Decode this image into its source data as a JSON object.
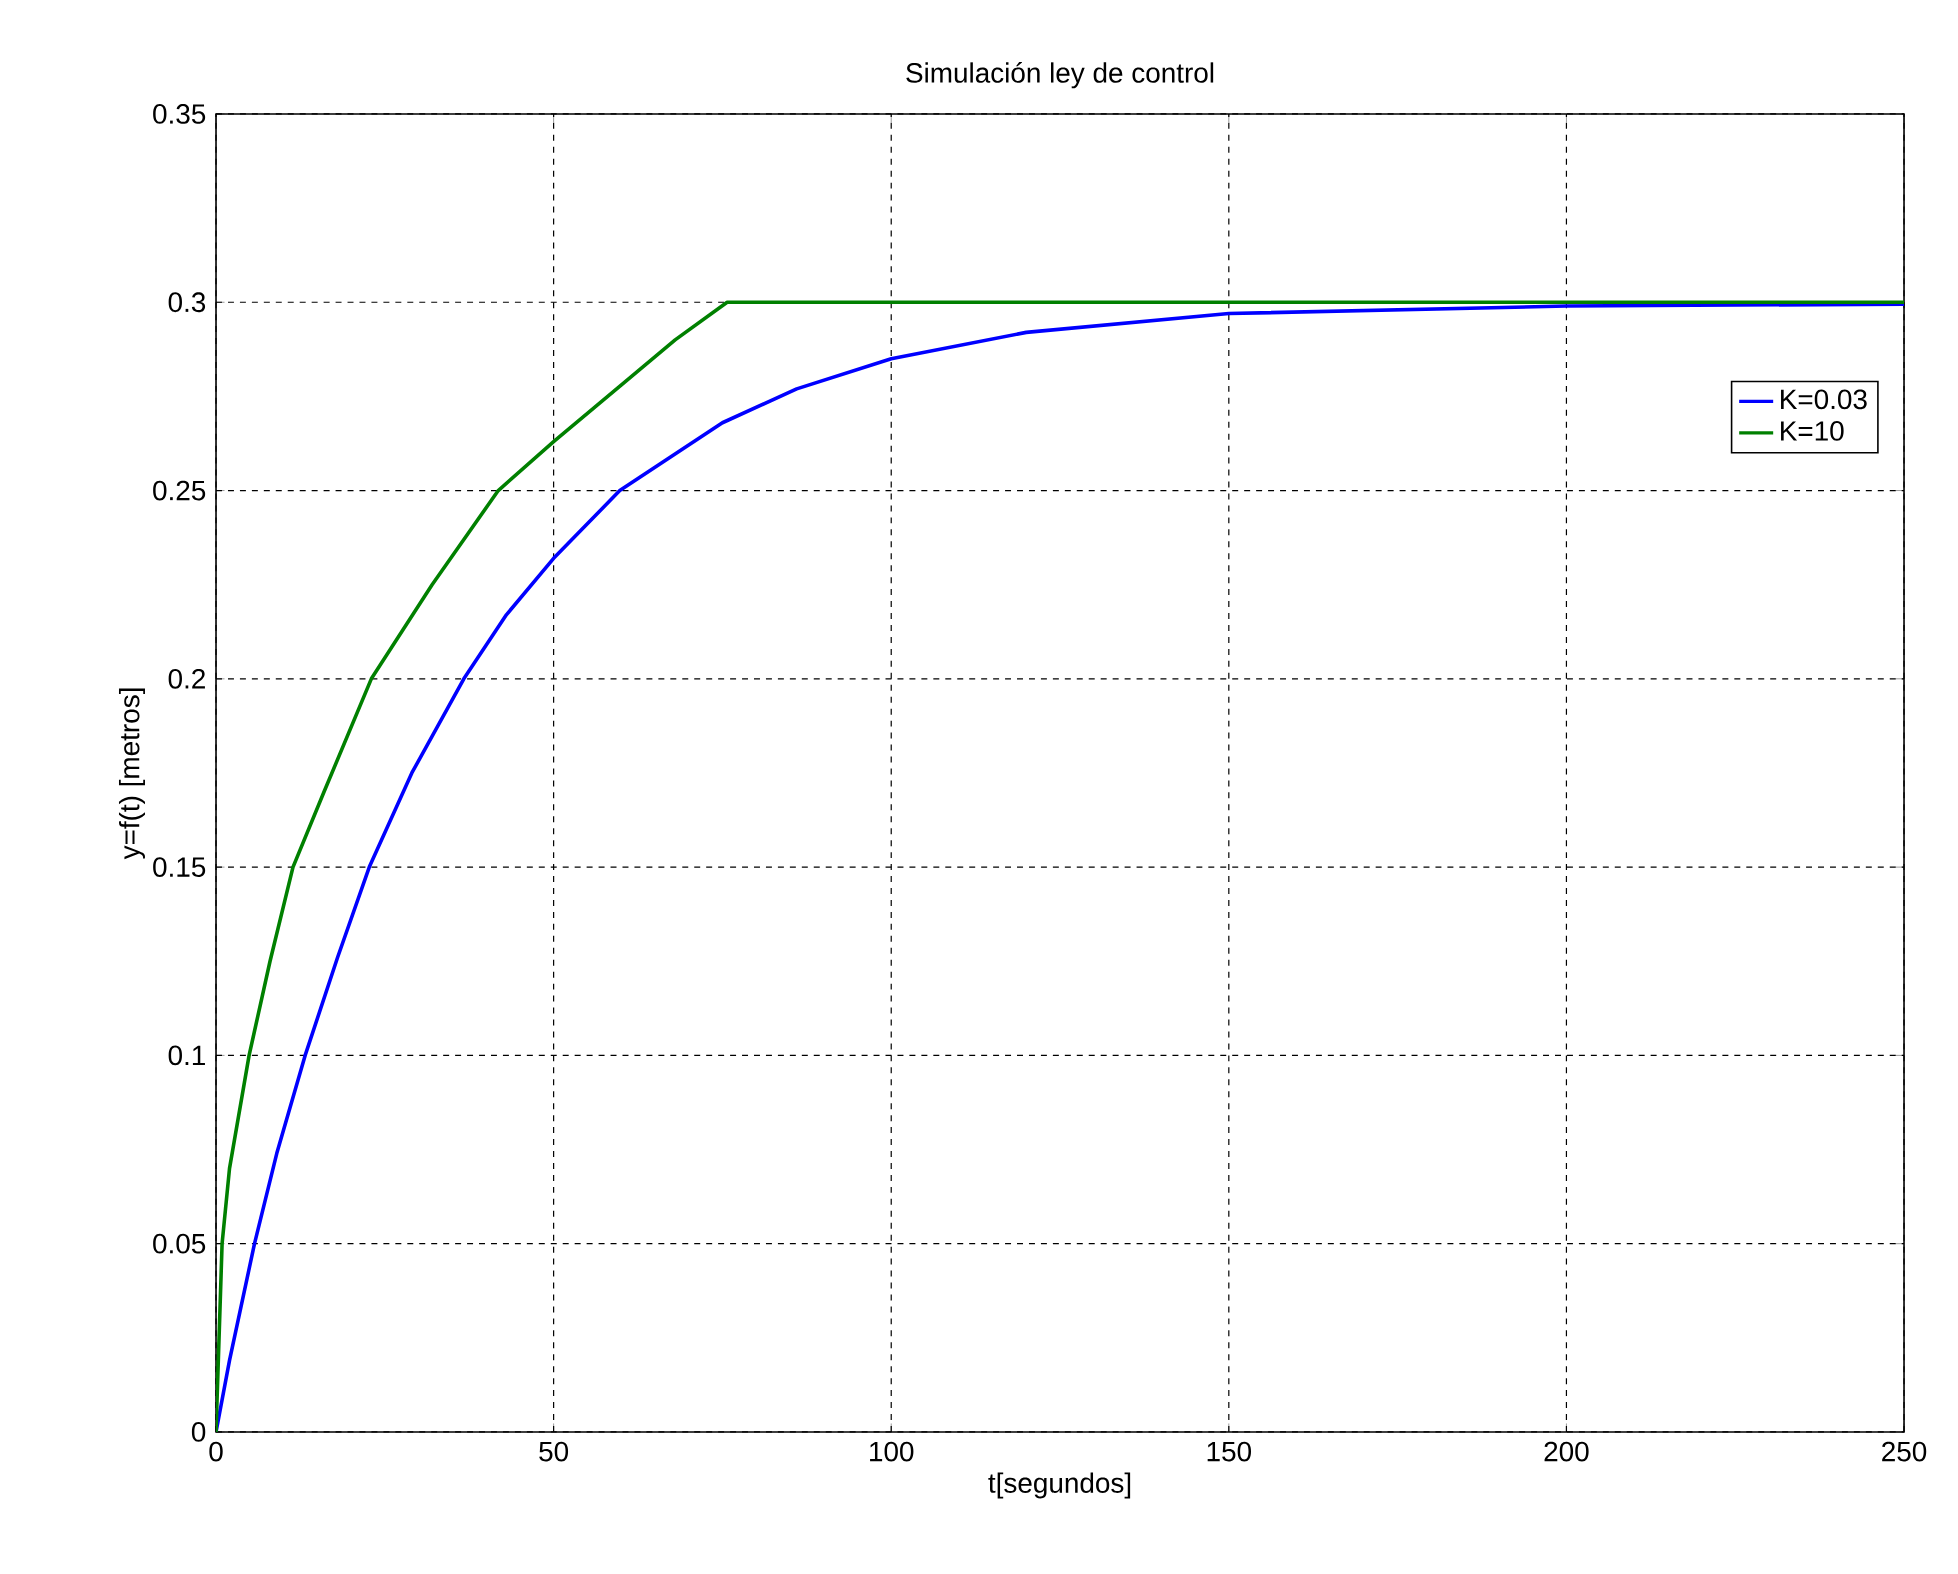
{
  "chart_data": {
    "type": "line",
    "title": "Simulación ley de control",
    "xlabel": "t[segundos]",
    "ylabel": "y=f(t)  [metros]",
    "xlim": [
      0,
      250
    ],
    "ylim": [
      0,
      0.35
    ],
    "xticks": [
      0,
      50,
      100,
      150,
      200,
      250
    ],
    "yticks": [
      0,
      0.05,
      0.1,
      0.15,
      0.2,
      0.25,
      0.3,
      0.35
    ],
    "grid": true,
    "legend": "right",
    "line_style": "solid",
    "marker": "none",
    "series": [
      {
        "name": "K=0.03",
        "color": "#0000ff",
        "x": [
          0,
          2,
          5.7,
          9,
          13.2,
          18,
          22.7,
          29,
          36.7,
          43,
          50,
          59.8,
          75,
          86,
          100,
          120,
          150,
          200,
          250
        ],
        "values": [
          0,
          0.019,
          0.05,
          0.074,
          0.1,
          0.126,
          0.15,
          0.175,
          0.2,
          0.217,
          0.232,
          0.25,
          0.268,
          0.277,
          0.285,
          0.292,
          0.297,
          0.299,
          0.2995
        ]
      },
      {
        "name": "K=10",
        "color": "#008000",
        "x": [
          0,
          0.9,
          2,
          4.9,
          8,
          11.4,
          16,
          23,
          32,
          41.8,
          50,
          60,
          68,
          75.7,
          100,
          150,
          200,
          250
        ],
        "values": [
          0,
          0.05,
          0.07,
          0.1,
          0.125,
          0.15,
          0.17,
          0.2,
          0.225,
          0.25,
          0.263,
          0.278,
          0.29,
          0.3,
          0.3,
          0.3,
          0.3,
          0.3
        ]
      }
    ]
  }
}
